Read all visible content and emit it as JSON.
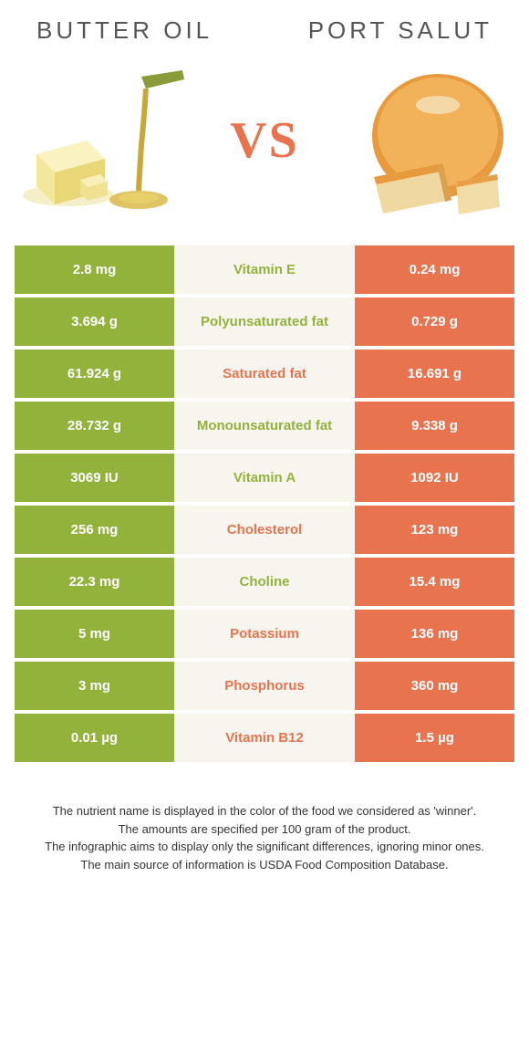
{
  "colors": {
    "green": "#93b23c",
    "orange": "#e8734f",
    "mid_bg": "#f7f5ee",
    "text_dark": "#333333"
  },
  "header": {
    "left": "BUTTER OIL",
    "right": "PORT SALUT"
  },
  "vs": "VS",
  "rows": [
    {
      "left": "2.8 mg",
      "label": "Vitamin E",
      "right": "0.24 mg",
      "winner": "left"
    },
    {
      "left": "3.694 g",
      "label": "Polyunsaturated fat",
      "right": "0.729 g",
      "winner": "left"
    },
    {
      "left": "61.924 g",
      "label": "Saturated fat",
      "right": "16.691 g",
      "winner": "right"
    },
    {
      "left": "28.732 g",
      "label": "Monounsaturated fat",
      "right": "9.338 g",
      "winner": "left"
    },
    {
      "left": "3069 IU",
      "label": "Vitamin A",
      "right": "1092 IU",
      "winner": "left"
    },
    {
      "left": "256 mg",
      "label": "Cholesterol",
      "right": "123 mg",
      "winner": "right"
    },
    {
      "left": "22.3 mg",
      "label": "Choline",
      "right": "15.4 mg",
      "winner": "left"
    },
    {
      "left": "5 mg",
      "label": "Potassium",
      "right": "136 mg",
      "winner": "right"
    },
    {
      "left": "3 mg",
      "label": "Phosphorus",
      "right": "360 mg",
      "winner": "right"
    },
    {
      "left": "0.01 µg",
      "label": "Vitamin B12",
      "right": "1.5 µg",
      "winner": "right"
    }
  ],
  "footer": {
    "line1": "The nutrient name is displayed in the color of the food we considered as 'winner'.",
    "line2": "The amounts are specified per 100 gram of the product.",
    "line3": "The infographic aims to display only the significant differences, ignoring minor ones.",
    "line4": "The main source of information is USDA Food Composition Database."
  }
}
